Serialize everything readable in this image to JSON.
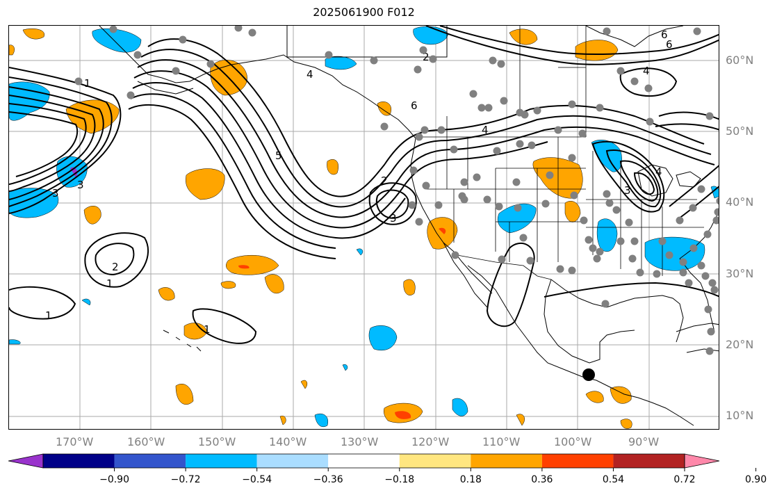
{
  "title": "2025061900 F012",
  "lat_labels": [
    "60°N",
    "50°N",
    "40°N",
    "30°N",
    "20°N",
    "10°N"
  ],
  "lon_labels": [
    "170°W",
    "160°W",
    "150°W",
    "140°W",
    "130°W",
    "120°W",
    "110°W",
    "100°W",
    "90°W"
  ],
  "colorbar": {
    "colors": [
      "#9933cc",
      "#000088",
      "#3355cc",
      "#00bbff",
      "#aaddff",
      "#ffffff",
      "#ffe680",
      "#ffa500",
      "#ff4000",
      "#b22222",
      "#ff88aa"
    ],
    "labels": [
      "−0.90",
      "−0.72",
      "−0.54",
      "−0.36",
      "−0.18",
      "0.18",
      "0.36",
      "0.54",
      "0.72",
      "0.90"
    ]
  },
  "contour_labels": [
    "1",
    "2",
    "3",
    "4",
    "5",
    "6",
    "4",
    "2",
    "3",
    "2",
    "1",
    "1",
    "1",
    "3",
    "6",
    "4",
    "6",
    "4",
    "3"
  ],
  "colors": {
    "positive": "#ffa500",
    "negative": "#00bbff",
    "station": "#808080",
    "grid": "#aaaaaa"
  }
}
